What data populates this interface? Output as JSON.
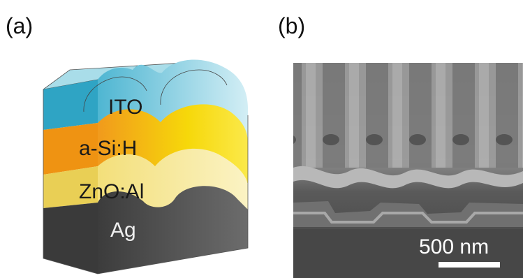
{
  "panels": [
    {
      "label": "(a)",
      "layers": [
        "ITO",
        "a-Si:H",
        "ZnO:Al",
        "Ag"
      ]
    },
    {
      "label": "(b)",
      "scale_bar": "500 nm"
    }
  ]
}
